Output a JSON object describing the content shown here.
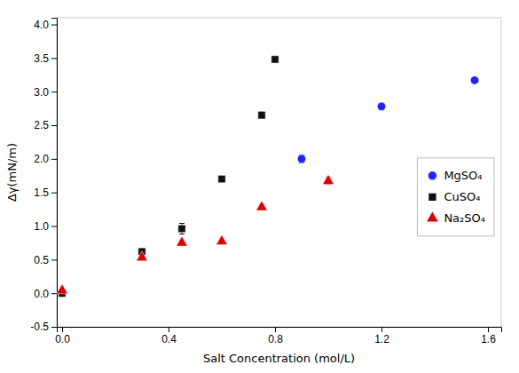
{
  "chart_data": {
    "type": "scatter",
    "x_label": "Salt Concentration (mol/L)",
    "y_label": "Δγ(mN/m)",
    "series": [
      {
        "name": "MgSO₄",
        "color": "#2222ff",
        "marker": "circle",
        "x": [
          0.0,
          0.9,
          1.2,
          1.55
        ],
        "values": [
          0.0,
          2.0,
          2.78,
          3.17
        ],
        "yerr": [
          0.02,
          0.06,
          0.05,
          0.03
        ]
      },
      {
        "name": "CuSO₄",
        "color": "#111111",
        "marker": "square",
        "x": [
          0.0,
          0.3,
          0.45,
          0.6,
          0.75,
          0.8
        ],
        "values": [
          0.0,
          0.62,
          0.96,
          1.7,
          2.65,
          3.48
        ],
        "yerr": [
          0.01,
          0.02,
          0.08,
          0.04,
          0.05,
          0.04
        ]
      },
      {
        "name": "Na₂SO₄",
        "color": "#dd0000",
        "marker": "triangle-up",
        "x": [
          0.0,
          0.3,
          0.45,
          0.6,
          0.75,
          1.0
        ],
        "values": [
          0.04,
          0.53,
          0.75,
          0.77,
          1.28,
          1.67
        ],
        "yerr": [
          0.01,
          0.02,
          0.03,
          0.02,
          0.04,
          0.05
        ]
      }
    ],
    "xlim": [
      -0.02,
      1.65
    ],
    "ylim": [
      -0.5,
      4.1
    ],
    "xticks": [
      {
        "value": 0,
        "label": "0.0"
      },
      0.4,
      0.8,
      1.2,
      1.6
    ],
    "yticks": [
      -0.5,
      {
        "value": 0,
        "label": "0.0"
      },
      0.5,
      {
        "value": 1,
        "label": "1.0"
      },
      1.5,
      {
        "value": 2,
        "label": "2.0"
      },
      2.5,
      {
        "value": 3,
        "label": "3.0"
      },
      3.5,
      {
        "value": 4,
        "label": "4.0"
      }
    ],
    "grid": false,
    "legend": "right"
  }
}
